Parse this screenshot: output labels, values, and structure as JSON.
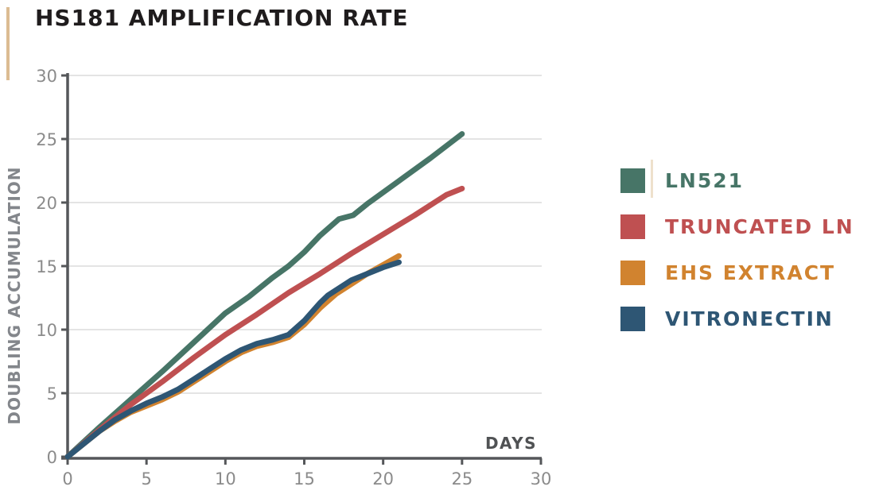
{
  "chart_data": {
    "type": "line",
    "title": "HS181 AMPLIFICATION RATE",
    "xlabel": "DAYS",
    "ylabel": "DOUBLING ACCUMULATION",
    "xlim": [
      0,
      30
    ],
    "ylim": [
      0,
      30
    ],
    "x_ticks": [
      0,
      5,
      10,
      15,
      20,
      25,
      30
    ],
    "y_ticks": [
      0,
      5,
      10,
      15,
      20,
      25,
      30
    ],
    "grid": "horizontal-only",
    "legend_position": "right-outside",
    "series": [
      {
        "name": "LN521",
        "color": "#477567",
        "x": [
          0,
          2,
          4,
          6,
          8,
          10,
          11.5,
          13,
          14,
          15,
          16,
          17.2,
          18.1,
          19,
          21,
          23,
          25
        ],
        "y": [
          0,
          2.3,
          4.5,
          6.7,
          9.0,
          11.3,
          12.6,
          14.1,
          15.0,
          16.1,
          17.4,
          18.7,
          19.0,
          19.9,
          21.7,
          23.5,
          25.4
        ]
      },
      {
        "name": "TRUNCATED LN",
        "color": "#bf5051",
        "x": [
          0,
          2,
          4,
          6,
          8,
          10,
          12,
          14,
          16,
          18,
          20,
          22,
          24,
          25
        ],
        "y": [
          0,
          2.1,
          4.1,
          5.9,
          7.8,
          9.6,
          11.2,
          12.9,
          14.4,
          16.0,
          17.5,
          19.0,
          20.6,
          21.1
        ]
      },
      {
        "name": "EHS EXTRACT",
        "color": "#d1832f",
        "x": [
          0,
          1,
          2,
          3,
          4,
          5,
          6,
          7,
          8,
          9,
          10,
          11,
          12,
          13,
          14,
          15,
          16,
          17,
          18,
          19,
          20,
          21
        ],
        "y": [
          0,
          1.0,
          2.0,
          2.8,
          3.5,
          4.0,
          4.5,
          5.1,
          5.9,
          6.7,
          7.5,
          8.2,
          8.7,
          9.0,
          9.4,
          10.4,
          11.7,
          12.8,
          13.6,
          14.4,
          15.1,
          15.8
        ]
      },
      {
        "name": "VITRONECTIN",
        "color": "#2e5674",
        "x": [
          0,
          1,
          2,
          3,
          4,
          5,
          6,
          7,
          8,
          9,
          10,
          11,
          12,
          13,
          14,
          15,
          16,
          16.5,
          18,
          19,
          20,
          21
        ],
        "y": [
          0,
          1.0,
          2.0,
          2.9,
          3.6,
          4.2,
          4.7,
          5.3,
          6.1,
          6.9,
          7.7,
          8.4,
          8.9,
          9.2,
          9.6,
          10.7,
          12.1,
          12.7,
          13.9,
          14.4,
          14.9,
          15.3
        ]
      }
    ]
  },
  "colors": {
    "accent_bar": "#dcbc92",
    "title": "#1f1c1d",
    "axis": "#55575a",
    "grid": "#e4e4e4",
    "tick_label": "#8b8b8b",
    "y_axis_title": "#83868b",
    "x_axis_title": "#505254",
    "artifact": "#d9bc8e"
  }
}
